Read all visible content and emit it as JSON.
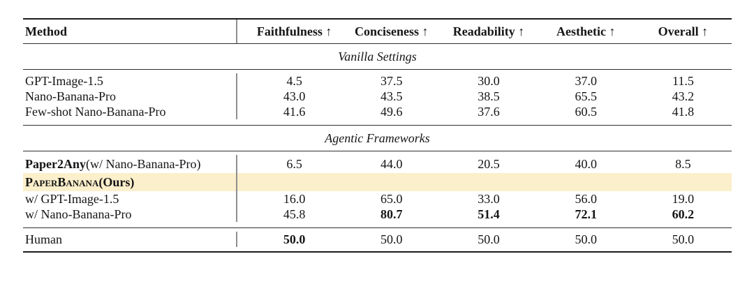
{
  "table": {
    "highlight_color": "#fcefcb",
    "header": {
      "method": "Method",
      "col1": "Faithfulness ↑",
      "col2": "Conciseness ↑",
      "col3": "Readability ↑",
      "col4": "Aesthetic ↑",
      "col5": "Overall ↑"
    },
    "sections": {
      "vanilla_title": "Vanilla Settings",
      "agentic_title": "Agentic Frameworks"
    },
    "rows": [
      {
        "name": "GPT-Image-1.5",
        "v": [
          "4.5",
          "37.5",
          "30.0",
          "37.0",
          "11.5"
        ]
      },
      {
        "name": "Nano-Banana-Pro",
        "v": [
          "43.0",
          "43.5",
          "38.5",
          "65.5",
          "43.2"
        ]
      },
      {
        "name": "Few-shot Nano-Banana-Pro",
        "v": [
          "41.6",
          "49.6",
          "37.6",
          "60.5",
          "41.8"
        ]
      },
      {
        "name_bold": "Paper2Any",
        "name_rest": " (w/ Nano-Banana-Pro)",
        "v": [
          "6.5",
          "44.0",
          "20.5",
          "40.0",
          "8.5"
        ]
      },
      {
        "name_smallcaps": "PaperBanana",
        "name_rest": " (Ours)",
        "v": [
          "",
          "",
          "",
          "",
          ""
        ]
      },
      {
        "name": "w/ GPT-Image-1.5",
        "v": [
          "16.0",
          "65.0",
          "33.0",
          "56.0",
          "19.0"
        ]
      },
      {
        "name": "w/ Nano-Banana-Pro",
        "v": [
          "45.8",
          "80.7",
          "51.4",
          "72.1",
          "60.2"
        ]
      },
      {
        "name": "Human",
        "v": [
          "50.0",
          "50.0",
          "50.0",
          "50.0",
          "50.0"
        ]
      }
    ]
  }
}
